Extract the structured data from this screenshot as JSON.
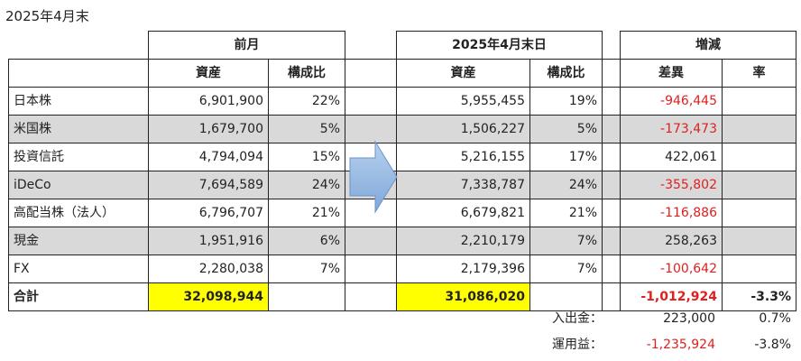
{
  "caption": "2025年4月末",
  "groups": {
    "prev": "前月",
    "current": "2025年4月末日",
    "change": "増減"
  },
  "columns": {
    "assets": "資産",
    "ratio": "構成比",
    "diff": "差異",
    "rate": "率"
  },
  "rows": [
    {
      "name": "日本株",
      "prev_assets": "6,901,900",
      "prev_ratio": "22%",
      "cur_assets": "5,955,455",
      "cur_ratio": "19%",
      "diff": "-946,445",
      "rate": ""
    },
    {
      "name": "米国株",
      "prev_assets": "1,679,700",
      "prev_ratio": "5%",
      "cur_assets": "1,506,227",
      "cur_ratio": "5%",
      "diff": "-173,473",
      "rate": ""
    },
    {
      "name": "投資信託",
      "prev_assets": "4,794,094",
      "prev_ratio": "15%",
      "cur_assets": "5,216,155",
      "cur_ratio": "17%",
      "diff": "422,061",
      "rate": ""
    },
    {
      "name": "iDeCo",
      "prev_assets": "7,694,589",
      "prev_ratio": "24%",
      "cur_assets": "7,338,787",
      "cur_ratio": "24%",
      "diff": "-355,802",
      "rate": ""
    },
    {
      "name": "高配当株（法人）",
      "prev_assets": "6,796,707",
      "prev_ratio": "21%",
      "cur_assets": "6,679,821",
      "cur_ratio": "21%",
      "diff": "-116,886",
      "rate": ""
    },
    {
      "name": "現金",
      "prev_assets": "1,951,916",
      "prev_ratio": "6%",
      "cur_assets": "2,210,179",
      "cur_ratio": "7%",
      "diff": "258,263",
      "rate": ""
    },
    {
      "name": "FX",
      "prev_assets": "2,280,038",
      "prev_ratio": "7%",
      "cur_assets": "2,179,396",
      "cur_ratio": "7%",
      "diff": "-100,642",
      "rate": ""
    }
  ],
  "total": {
    "label": "合計",
    "prev_assets": "32,098,944",
    "cur_assets": "31,086,020",
    "diff": "-1,012,924",
    "rate": "-3.3%"
  },
  "summary": [
    {
      "label": "入出金：",
      "value": "223,000",
      "rate": "0.7%"
    },
    {
      "label": "運用益：",
      "value": "-1,235,924",
      "rate": "-3.8%"
    }
  ],
  "colors": {
    "negative": "#e02020",
    "shade": "#d9d9d9",
    "highlight": "#ffff00",
    "arrow": "#8db4e2"
  },
  "icons": {
    "arrow": "right-arrow-icon"
  }
}
